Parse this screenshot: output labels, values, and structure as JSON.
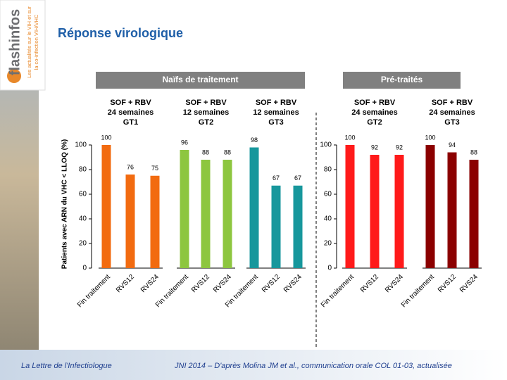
{
  "slide": {
    "title": "Réponse virologique",
    "logo": {
      "name": "flashinfos",
      "tagline": [
        "Les actualités sur le VIH et sur",
        "la co-infection VIH/VHC"
      ]
    },
    "footer_left": "La Lettre de l'Infectiologue",
    "footer_right": "JNI 2014 – D'après Molina JM et al., communication orale COL 01-03, actualisée"
  },
  "chart_data": [
    {
      "type": "grouped-bar",
      "title": "Naïfs de traitement",
      "ylabel": "Patients avec ARN du VHC < LLOQ (%)",
      "ylim": [
        0,
        100
      ],
      "yticks": [
        0,
        20,
        40,
        60,
        80,
        100
      ],
      "groups": [
        {
          "title": [
            "SOF + RBV",
            "24 semaines",
            "GT1"
          ],
          "color": "#f26b10",
          "categories": [
            "Fin traitement",
            "RVS12",
            "RVS24"
          ],
          "values": [
            100,
            76,
            75
          ]
        },
        {
          "title": [
            "SOF + RBV",
            "12 semaines",
            "GT2"
          ],
          "color": "#8dc63f",
          "categories": [
            "Fin traitement",
            "RVS12",
            "RVS24"
          ],
          "values": [
            96,
            88,
            88
          ]
        },
        {
          "title": [
            "SOF + RBV",
            "12 semaines",
            "GT3"
          ],
          "color": "#17979c",
          "categories": [
            "Fin traitement",
            "RVS12",
            "RVS24"
          ],
          "values": [
            98,
            67,
            67
          ]
        }
      ]
    },
    {
      "type": "grouped-bar",
      "title": "Pré-traités",
      "ylim": [
        0,
        100
      ],
      "yticks": [
        0,
        20,
        40,
        60,
        80,
        100
      ],
      "groups": [
        {
          "title": [
            "SOF + RBV",
            "24 semaines",
            "GT2"
          ],
          "color": "#ff1a1a",
          "categories": [
            "Fin traitement",
            "RVS12",
            "RVS24"
          ],
          "values": [
            100,
            92,
            92
          ]
        },
        {
          "title": [
            "SOF + RBV",
            "24 semaines",
            "GT3"
          ],
          "color": "#8b0000",
          "categories": [
            "Fin traitement",
            "RVS12",
            "RVS24"
          ],
          "values": [
            100,
            94,
            88
          ]
        }
      ]
    }
  ]
}
